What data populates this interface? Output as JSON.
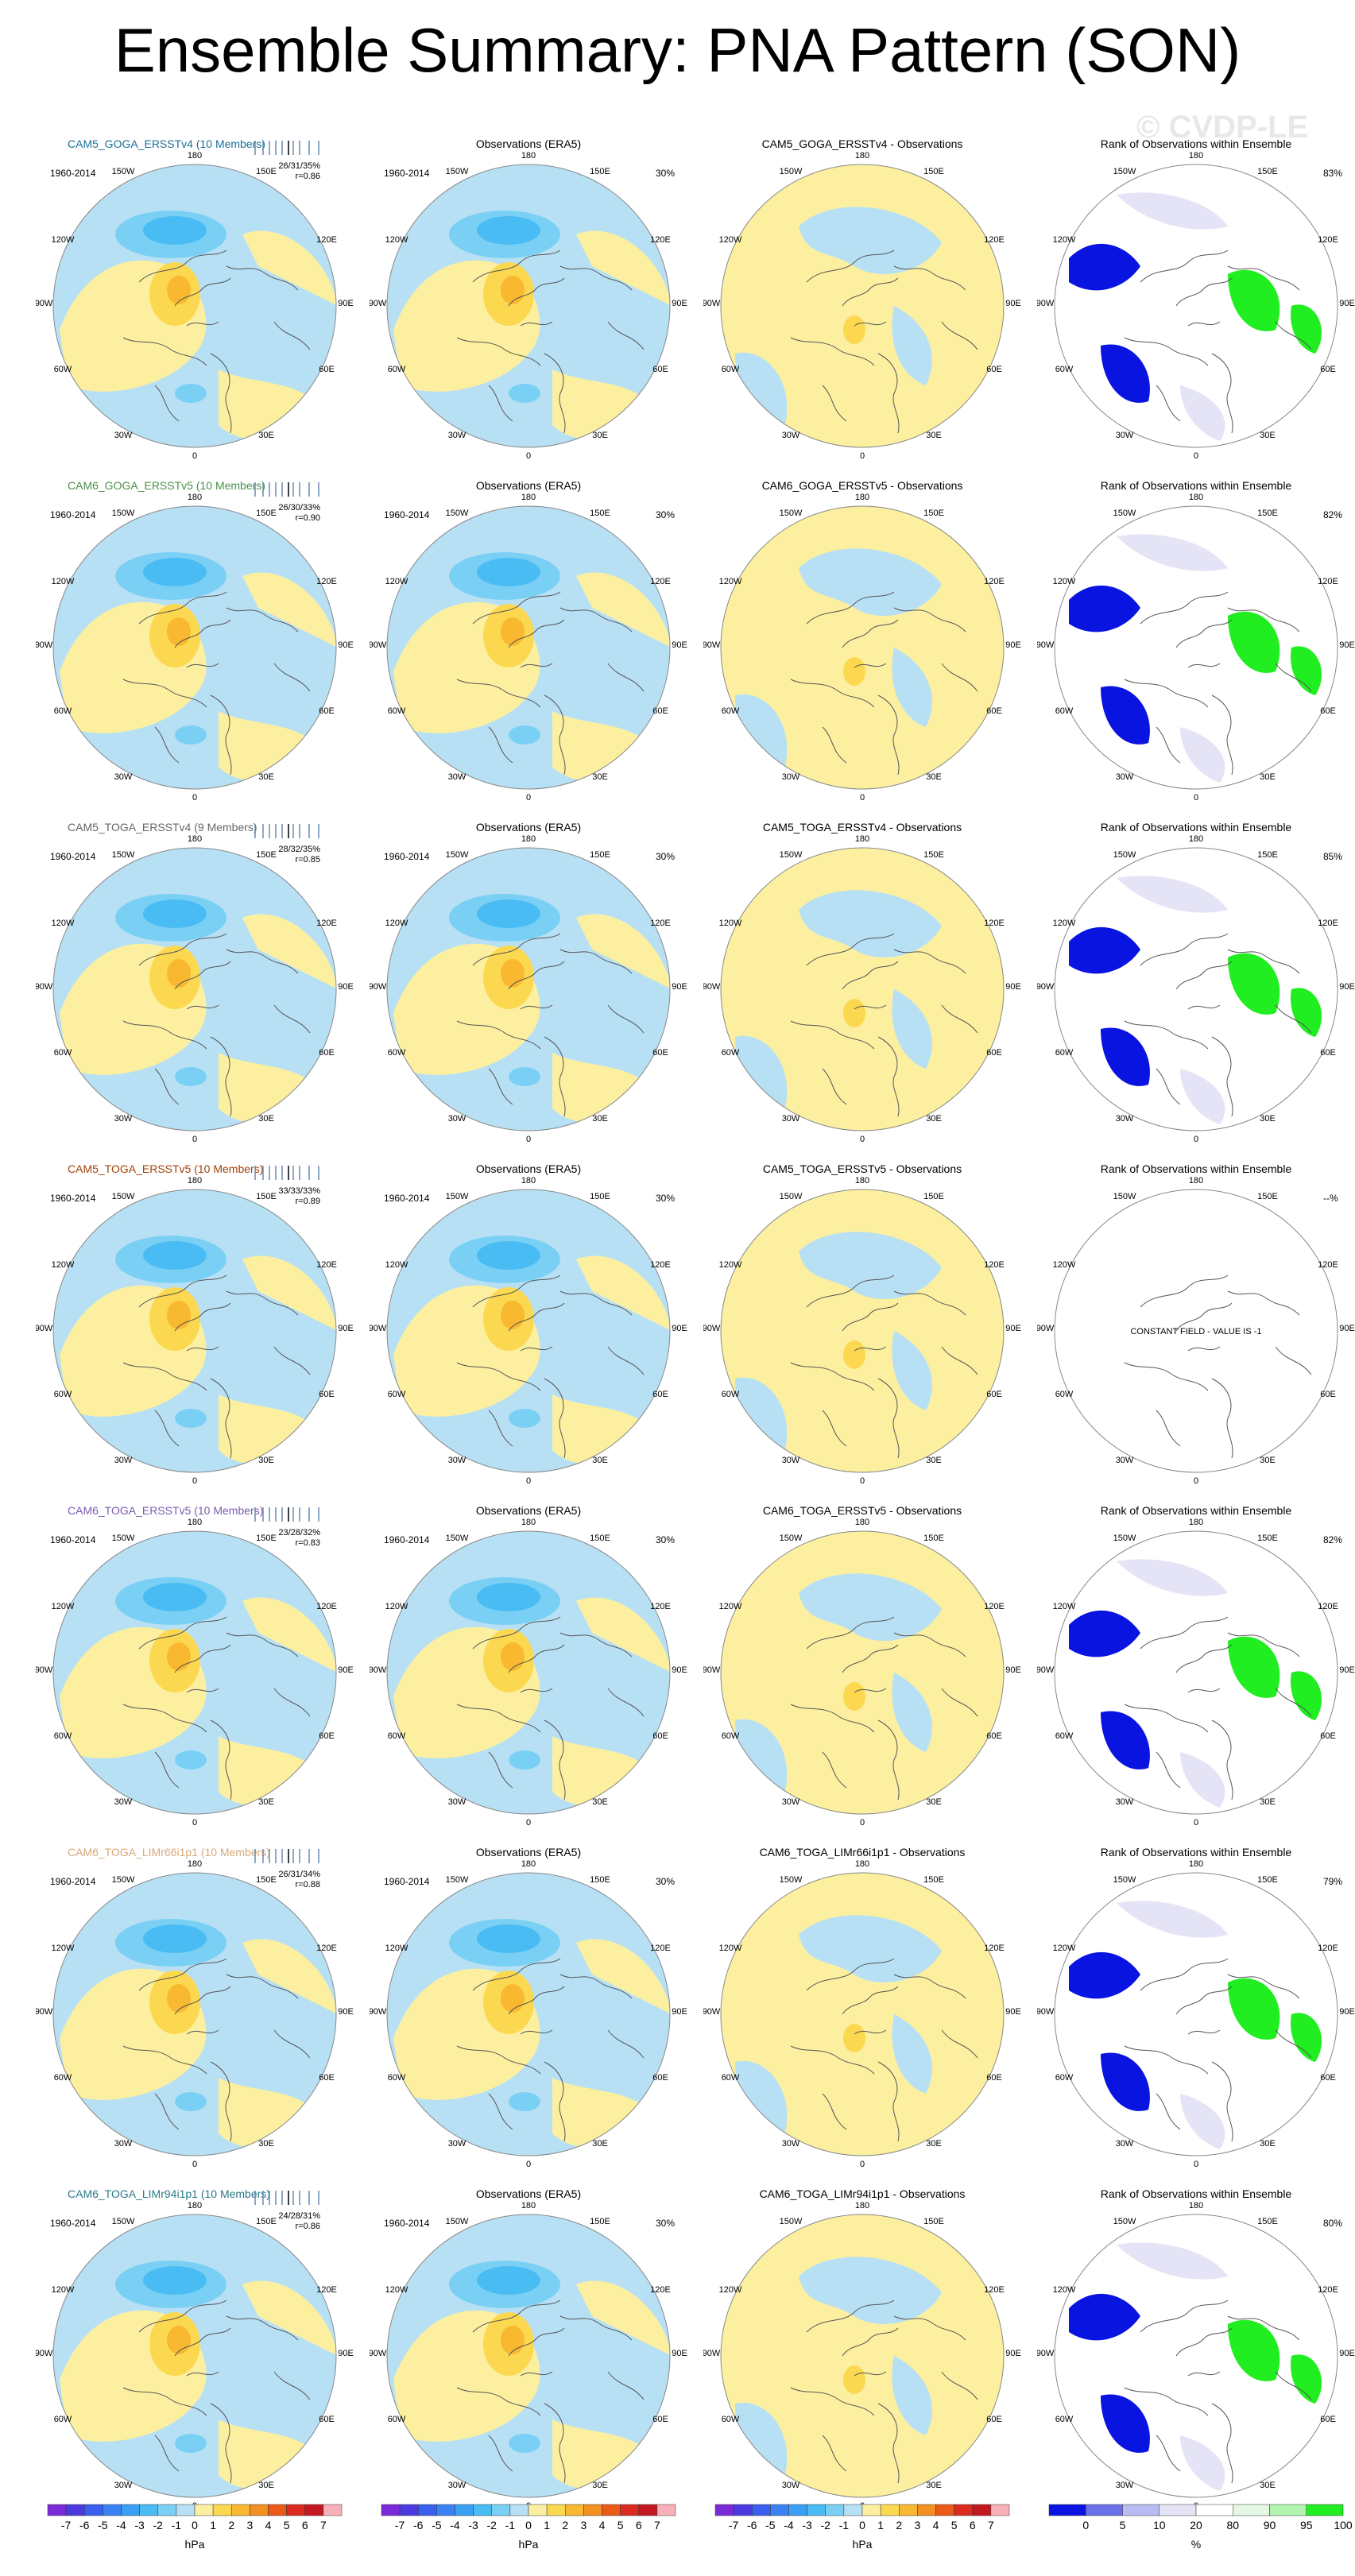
{
  "title": "Ensemble Summary: PNA Pattern (SON)",
  "watermark": "© CVDP-LE",
  "common": {
    "period": "1960-2014",
    "obs_title": "Observations (ERA5)",
    "rank_title": "Rank of Observations within Ensemble",
    "constant_field": "CONSTANT FIELD - VALUE IS -1",
    "lon_labels": {
      "n180": "180",
      "w150": "150W",
      "e150": "150E",
      "w120": "120W",
      "e120": "120E",
      "w90": "90W",
      "e90": "90E",
      "w60": "60W",
      "e60": "60E",
      "w30": "30W",
      "e30": "30E",
      "n0": "0"
    }
  },
  "rows": [
    {
      "ens_title": "CAM5_GOGA_ERSSTv4 (10 Members)",
      "ens_color": "#1a6f9a",
      "stats": "26/31/35%",
      "r": "r=0.86",
      "obs_pct": "30%",
      "diff_title": "CAM5_GOGA_ERSSTv4 - Observations",
      "rank_pct": "83%",
      "constant": false
    },
    {
      "ens_title": "CAM6_GOGA_ERSSTv5 (10 Members)",
      "ens_color": "#4a8f4a",
      "stats": "26/30/33%",
      "r": "r=0.90",
      "obs_pct": "30%",
      "diff_title": "CAM6_GOGA_ERSSTv5 - Observations",
      "rank_pct": "82%",
      "constant": false
    },
    {
      "ens_title": "CAM5_TOGA_ERSSTv4 (9 Members)",
      "ens_color": "#666666",
      "stats": "28/32/35%",
      "r": "r=0.85",
      "obs_pct": "30%",
      "diff_title": "CAM5_TOGA_ERSSTv4 - Observations",
      "rank_pct": "85%",
      "constant": false
    },
    {
      "ens_title": "CAM5_TOGA_ERSSTv5 (10 Members)",
      "ens_color": "#a0400a",
      "stats": "33/33/33%",
      "r": "r=0.89",
      "obs_pct": "30%",
      "diff_title": "CAM5_TOGA_ERSSTv5 - Observations",
      "rank_pct": "--%",
      "constant": true
    },
    {
      "ens_title": "CAM6_TOGA_ERSSTv5 (10 Members)",
      "ens_color": "#7a5ab0",
      "stats": "23/28/32%",
      "r": "r=0.83",
      "obs_pct": "30%",
      "diff_title": "CAM6_TOGA_ERSSTv5 - Observations",
      "rank_pct": "82%",
      "constant": false
    },
    {
      "ens_title": "CAM6_TOGA_LIMr66i1p1 (10 Members)",
      "ens_color": "#d8a878",
      "stats": "26/31/34%",
      "r": "r=0.88",
      "obs_pct": "30%",
      "diff_title": "CAM6_TOGA_LIMr66i1p1 - Observations",
      "rank_pct": "79%",
      "constant": false
    },
    {
      "ens_title": "CAM6_TOGA_LIMr94i1p1 (10 Members)",
      "ens_color": "#2a7a8a",
      "stats": "24/28/31%",
      "r": "r=0.86",
      "obs_pct": "30%",
      "diff_title": "CAM6_TOGA_LIMr94i1p1 - Observations",
      "rank_pct": "80%",
      "constant": false
    }
  ],
  "colorbar_hpa": {
    "labels": [
      "-7",
      "-6",
      "-5",
      "-4",
      "-3",
      "-2",
      "-1",
      "0",
      "1",
      "2",
      "3",
      "4",
      "5",
      "6",
      "7"
    ],
    "unit": "hPa",
    "colors": [
      "#7a2ad8",
      "#4a3ae0",
      "#3a5ef0",
      "#3a82f4",
      "#3aa0f4",
      "#4abcf4",
      "#7ad0f4",
      "#b8e0f4",
      "#fcf0a0",
      "#fcd850",
      "#f8b830",
      "#f49020",
      "#ec5a18",
      "#dc2a20",
      "#c41820",
      "#f8b0b8"
    ]
  },
  "colorbar_rank": {
    "labels": [
      "0",
      "5",
      "10",
      "20",
      "80",
      "90",
      "95",
      "100"
    ],
    "unit": "%",
    "colors": [
      "#0a14e0",
      "#6a70ea",
      "#b8bcf2",
      "#e4e4f6",
      "#ffffff",
      "#e4f8e4",
      "#b0f4b0",
      "#20ee20"
    ]
  }
}
